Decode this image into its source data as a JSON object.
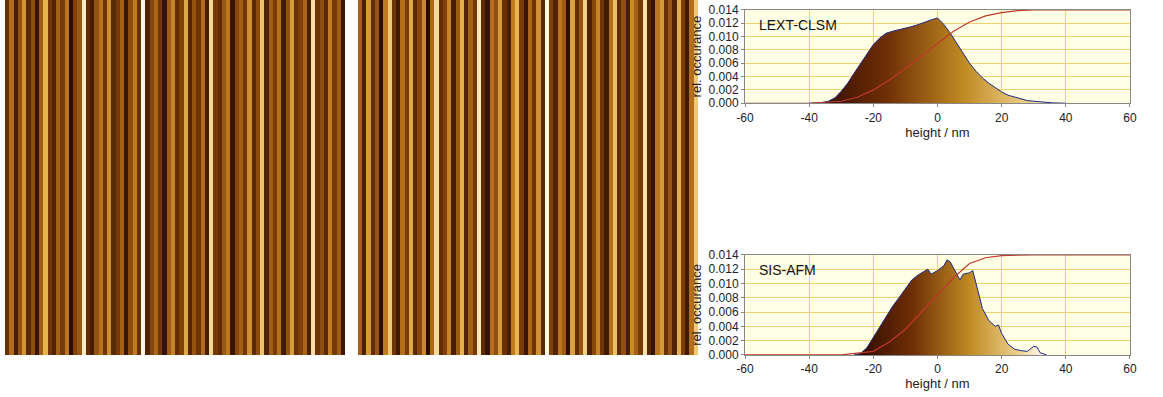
{
  "chart_data": [
    {
      "type": "heatmap",
      "tick_labels": false,
      "z": [
        [
          -5,
          8,
          -12,
          3,
          15,
          -8,
          2,
          -15,
          5,
          20,
          -3,
          -10,
          6,
          -2,
          10,
          -18,
          0,
          4,
          28,
          -6,
          -12,
          3,
          9,
          -4,
          14,
          -8,
          -2,
          6,
          -14,
          2,
          11,
          -5,
          30,
          -10,
          1,
          7,
          -3,
          -16,
          5,
          12,
          -6,
          0,
          18,
          -9,
          3,
          -4,
          8,
          -12,
          25,
          -2,
          -7,
          4,
          10,
          -15,
          1,
          6,
          -3,
          14,
          -8,
          2,
          22,
          -10,
          5,
          -1,
          9,
          -13,
          3,
          16,
          -5,
          0,
          7,
          -11,
          26,
          -4,
          2,
          -8,
          11,
          -2,
          5,
          -14
        ]
      ]
    },
    {
      "type": "heatmap",
      "tick_labels": false,
      "z": [
        [
          4,
          -10,
          12,
          -6,
          2,
          -15,
          8,
          18,
          -4,
          -12,
          6,
          -2,
          14,
          -8,
          0,
          10,
          -16,
          5,
          20,
          -6,
          -1,
          9,
          -11,
          3,
          15,
          -9,
          4,
          -3,
          22,
          -7,
          -14,
          6,
          1,
          12,
          -5,
          -10,
          8,
          16,
          -2,
          -13,
          5,
          -4,
          11,
          -8,
          24,
          -1,
          -9,
          7,
          3,
          -15,
          13,
          -6,
          2,
          19,
          -10,
          0,
          9,
          -4,
          -12,
          6,
          17,
          -7,
          1,
          -11,
          10,
          4,
          -3,
          21,
          -8,
          -14,
          7,
          12,
          -5,
          2,
          -9,
          15,
          -2,
          -12,
          6,
          18
        ]
      ]
    },
    {
      "type": "area",
      "annotations": [
        "LEXT-CLSM"
      ],
      "x_label": "height / nm",
      "y_label": "rel. occurance",
      "xlim": [
        -60,
        60
      ],
      "xticks": [
        -60,
        -40,
        -20,
        0,
        20,
        40,
        60
      ],
      "ylim": [
        0,
        0.014
      ],
      "yticks": [
        {
          "value": 0,
          "label": "0.000"
        },
        {
          "value": 0.002,
          "label": "0.002"
        },
        {
          "value": 0.004,
          "label": "0.004"
        },
        {
          "value": 0.006,
          "label": "0.006"
        },
        {
          "value": 0.008,
          "label": "0.008"
        },
        {
          "value": 0.01,
          "label": "0.010"
        },
        {
          "value": 0.012,
          "label": "0.012"
        },
        {
          "value": 0.014,
          "label": "0.014"
        }
      ],
      "grid": true,
      "series": [
        {
          "type": "area",
          "color": "#1c2a80",
          "x": [
            -40,
            -36,
            -34,
            -32,
            -30,
            -28,
            -26,
            -24,
            -22,
            -20,
            -18,
            -16,
            -14,
            -12,
            -10,
            -8,
            -6,
            -4,
            -2,
            0,
            2,
            4,
            6,
            8,
            10,
            12,
            14,
            16,
            18,
            20,
            22,
            24,
            26,
            28,
            30,
            32,
            34,
            36,
            40
          ],
          "values": [
            0,
            0.0001,
            0.0003,
            0.0008,
            0.0018,
            0.003,
            0.0045,
            0.006,
            0.0075,
            0.0088,
            0.0098,
            0.0105,
            0.0108,
            0.011,
            0.0112,
            0.0115,
            0.0118,
            0.0122,
            0.0125,
            0.0128,
            0.0118,
            0.0105,
            0.009,
            0.0075,
            0.006,
            0.0048,
            0.0038,
            0.003,
            0.0023,
            0.0017,
            0.0012,
            0.0009,
            0.0006,
            0.0004,
            0.0003,
            0.0002,
            0.0001,
            5e-05,
            0
          ]
        },
        {
          "type": "line",
          "color": "#c0392b",
          "x": [
            -60,
            -40,
            -30,
            -25,
            -20,
            -15,
            -10,
            -5,
            0,
            5,
            10,
            15,
            20,
            25,
            30,
            60
          ],
          "values": [
            0,
            0,
            0.0003,
            0.0009,
            0.002,
            0.0035,
            0.0052,
            0.0071,
            0.009,
            0.0108,
            0.0122,
            0.0131,
            0.0136,
            0.0139,
            0.014,
            0.014
          ]
        }
      ]
    },
    {
      "type": "area",
      "annotations": [
        "SIS-AFM"
      ],
      "x_label": "height / nm",
      "y_label": "rel. occurance",
      "xlim": [
        -60,
        60
      ],
      "xticks": [
        -60,
        -40,
        -20,
        0,
        20,
        40,
        60
      ],
      "ylim": [
        0,
        0.014
      ],
      "yticks": [
        {
          "value": 0,
          "label": "0.000"
        },
        {
          "value": 0.002,
          "label": "0.002"
        },
        {
          "value": 0.004,
          "label": "0.004"
        },
        {
          "value": 0.006,
          "label": "0.006"
        },
        {
          "value": 0.008,
          "label": "0.008"
        },
        {
          "value": 0.01,
          "label": "0.010"
        },
        {
          "value": 0.012,
          "label": "0.012"
        },
        {
          "value": 0.014,
          "label": "0.014"
        }
      ],
      "grid": true,
      "series": [
        {
          "type": "area",
          "color": "#1c2a80",
          "x": [
            -26,
            -24,
            -22,
            -20,
            -18,
            -16,
            -14,
            -12,
            -10,
            -8,
            -6,
            -4,
            -3,
            -2,
            0,
            2,
            3,
            4,
            6,
            7,
            8,
            10,
            11,
            12,
            13,
            14,
            16,
            18,
            19,
            20,
            22,
            24,
            26,
            28,
            30,
            31,
            32,
            34
          ],
          "values": [
            0,
            0.0002,
            0.001,
            0.0025,
            0.004,
            0.0055,
            0.0068,
            0.008,
            0.0092,
            0.0105,
            0.0112,
            0.0118,
            0.012,
            0.0113,
            0.0118,
            0.0125,
            0.0133,
            0.013,
            0.0112,
            0.0105,
            0.0113,
            0.0115,
            0.0118,
            0.01,
            0.008,
            0.0065,
            0.0048,
            0.004,
            0.0042,
            0.003,
            0.0015,
            0.0008,
            0.0006,
            0.0005,
            0.0012,
            0.0011,
            0.0003,
            0
          ]
        },
        {
          "type": "line",
          "color": "#c0392b",
          "x": [
            -60,
            -30,
            -20,
            -15,
            -10,
            -5,
            0,
            5,
            10,
            15,
            20,
            30,
            60
          ],
          "values": [
            0,
            0,
            0.0005,
            0.0018,
            0.0036,
            0.006,
            0.0083,
            0.0108,
            0.0128,
            0.0136,
            0.0139,
            0.014,
            0.014
          ]
        }
      ]
    }
  ]
}
